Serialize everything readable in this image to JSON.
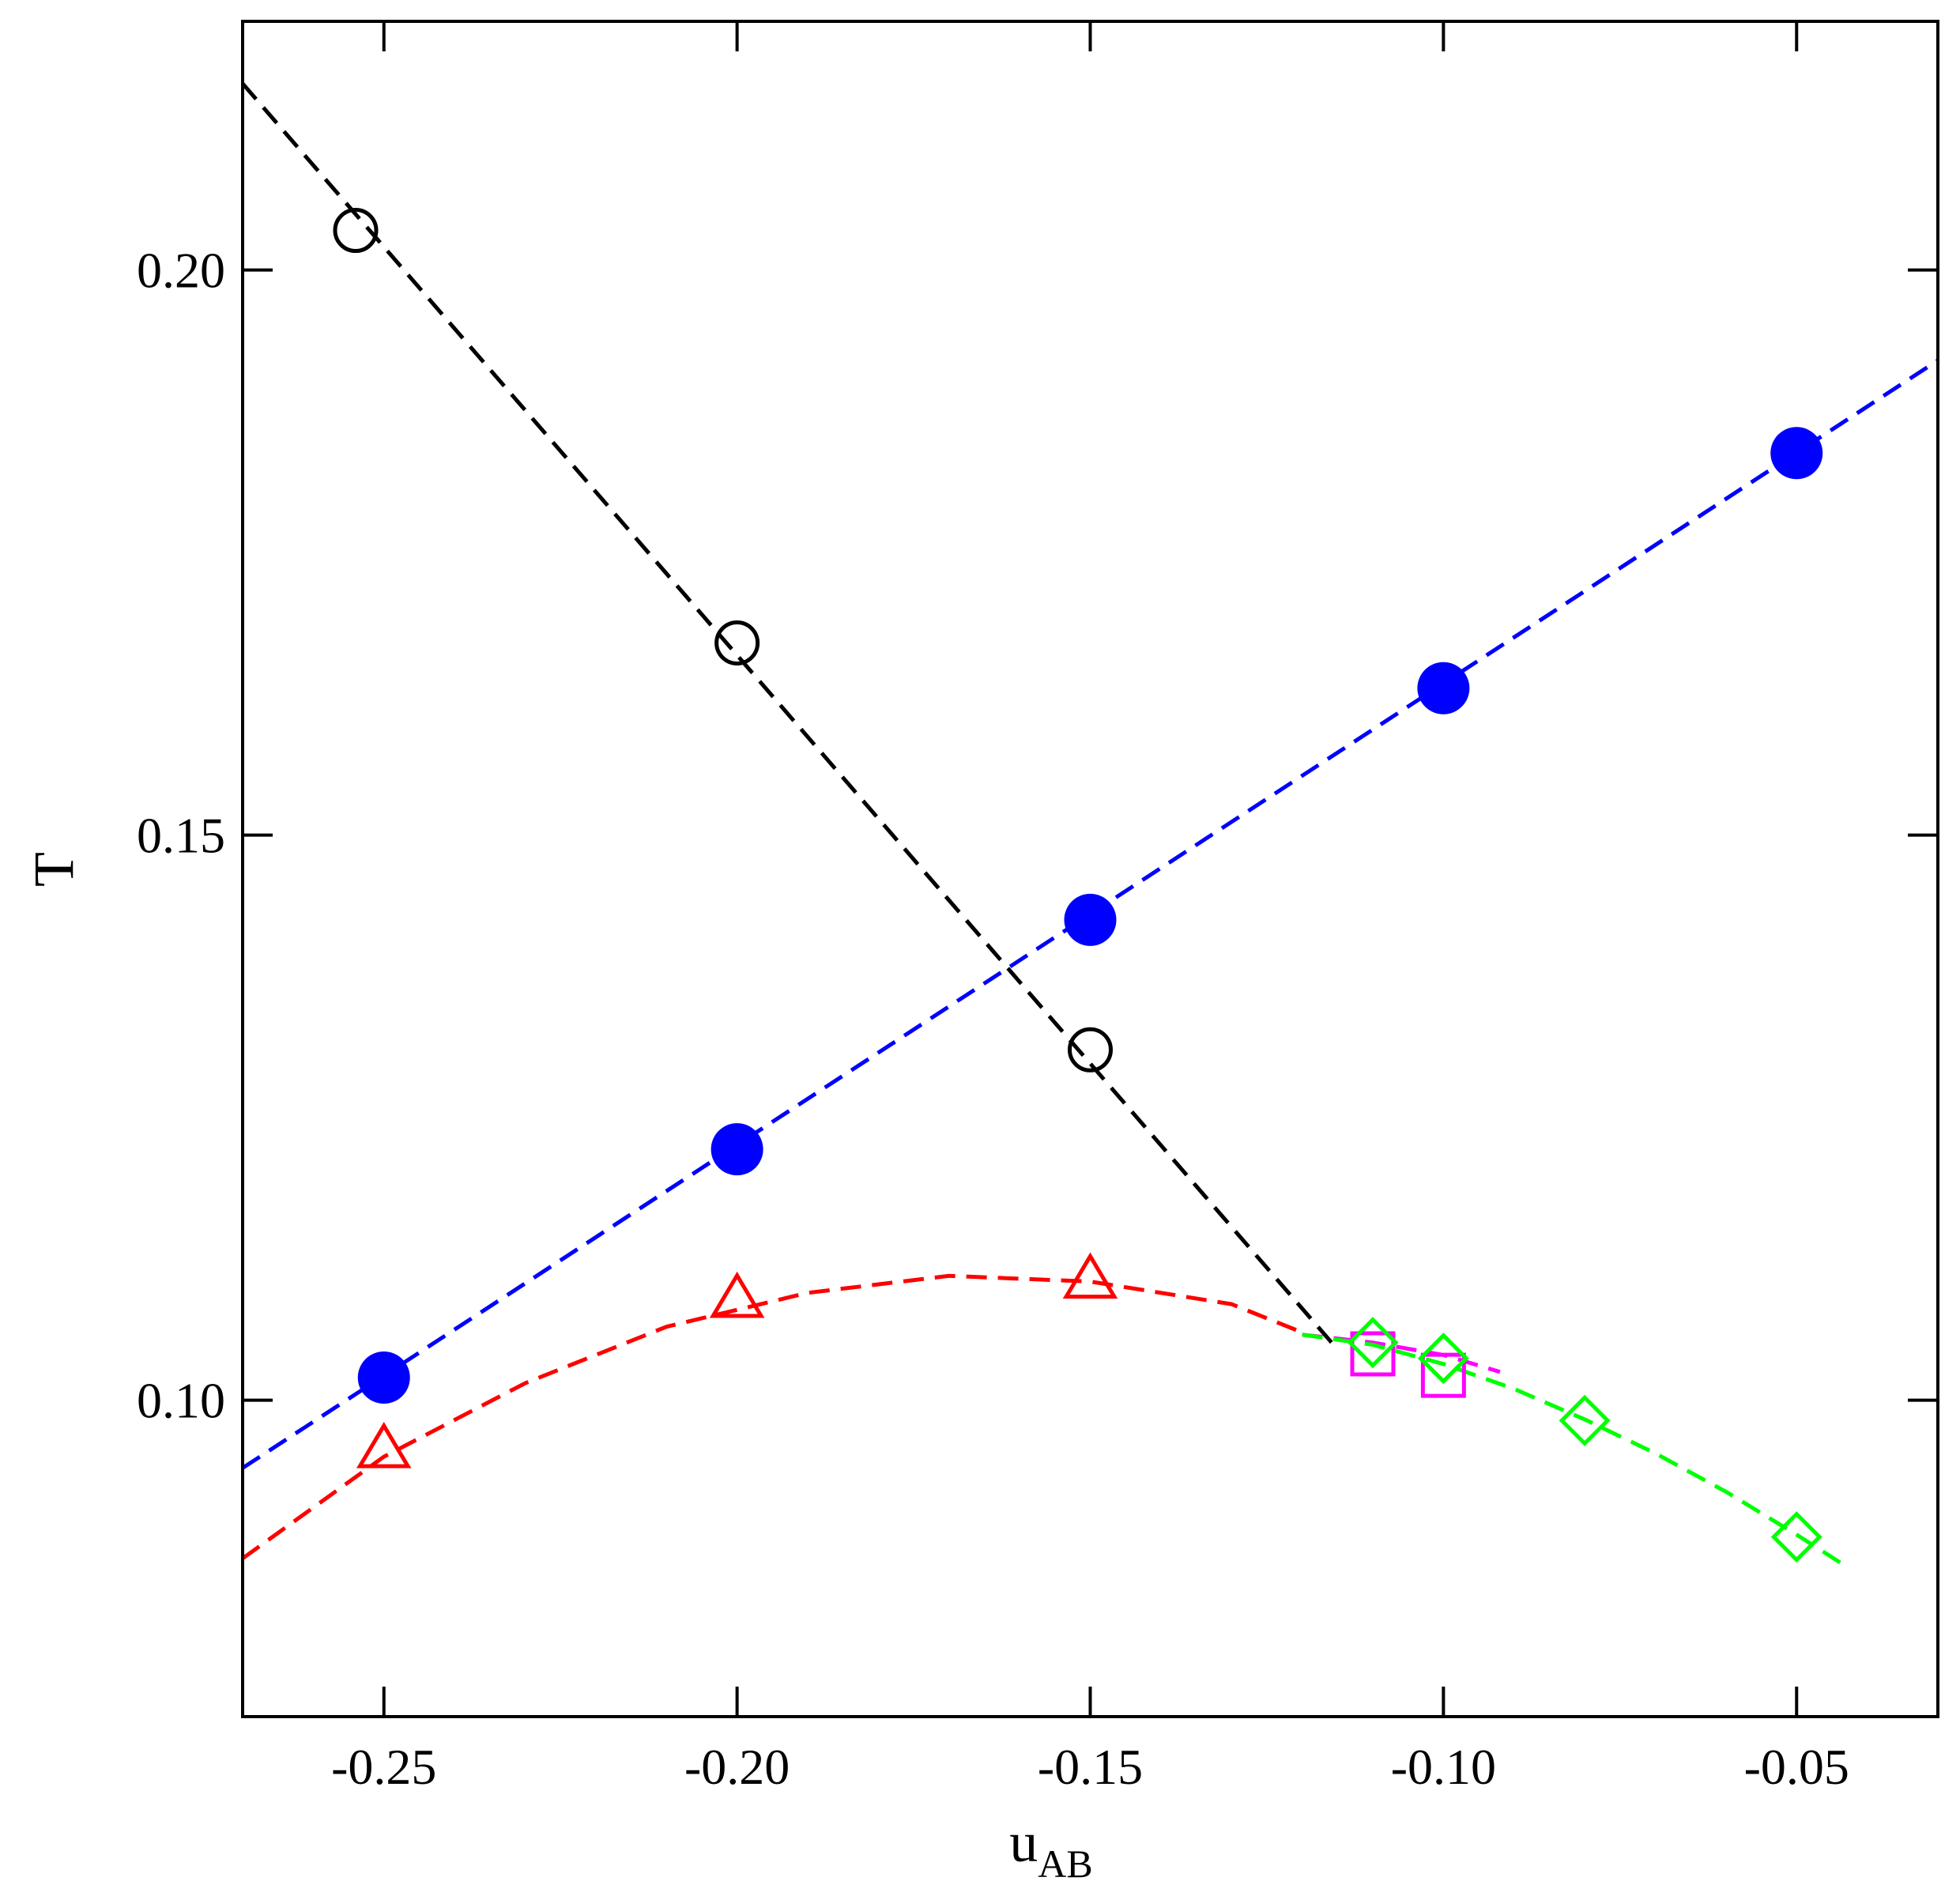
{
  "chart_data": {
    "type": "scatter",
    "xlabel": "u",
    "xlabel_subscript": "AB",
    "ylabel": "T",
    "xlim": [
      -0.27,
      -0.03
    ],
    "ylim": [
      0.072,
      0.222
    ],
    "xticks": [
      -0.25,
      -0.2,
      -0.15,
      -0.1,
      -0.05
    ],
    "xtick_labels": [
      "-0.25",
      "-0.20",
      "-0.15",
      "-0.10",
      "-0.05"
    ],
    "yticks": [
      0.1,
      0.15,
      0.2
    ],
    "ytick_labels": [
      "0.10",
      "0.15",
      "0.20"
    ],
    "grid": false,
    "series": [
      {
        "marker": "open-circle",
        "color": "#000000",
        "points": [
          [
            -0.254,
            0.2035
          ],
          [
            -0.2,
            0.167
          ],
          [
            -0.15,
            0.131
          ]
        ],
        "fit_line": [
          [
            -0.27,
            0.2165
          ],
          [
            -0.115,
            0.1045
          ]
        ]
      },
      {
        "marker": "filled-circle",
        "color": "#0000ff",
        "points": [
          [
            -0.25,
            0.102
          ],
          [
            -0.2,
            0.1222
          ],
          [
            -0.15,
            0.1425
          ],
          [
            -0.1,
            0.163
          ],
          [
            -0.05,
            0.1838
          ]
        ],
        "fit_line": [
          [
            -0.27,
            0.094
          ],
          [
            -0.03,
            0.192
          ]
        ]
      },
      {
        "marker": "open-triangle",
        "color": "#ff0000",
        "points": [
          [
            -0.25,
            0.0955
          ],
          [
            -0.2,
            0.1088
          ],
          [
            -0.15,
            0.1105
          ]
        ],
        "fit_line": [
          [
            -0.27,
            0.086
          ],
          [
            -0.25,
            0.095
          ],
          [
            -0.23,
            0.1015
          ],
          [
            -0.21,
            0.1065
          ],
          [
            -0.19,
            0.1095
          ],
          [
            -0.17,
            0.111
          ],
          [
            -0.15,
            0.1105
          ],
          [
            -0.13,
            0.1085
          ],
          [
            -0.12,
            0.106
          ]
        ]
      },
      {
        "marker": "open-square",
        "color": "#ff00ff",
        "points": [
          [
            -0.11,
            0.1041
          ],
          [
            -0.1,
            0.1022
          ]
        ],
        "fit_line": [
          [
            -0.12,
            0.1058
          ],
          [
            -0.11,
            0.1051
          ],
          [
            -0.1,
            0.104
          ],
          [
            -0.092,
            0.1025
          ]
        ]
      },
      {
        "marker": "open-diamond",
        "color": "#00ff00",
        "points": [
          [
            -0.11,
            0.1051
          ],
          [
            -0.1,
            0.1037
          ],
          [
            -0.08,
            0.0982
          ],
          [
            -0.05,
            0.0879
          ]
        ],
        "fit_line": [
          [
            -0.12,
            0.1058
          ],
          [
            -0.11,
            0.1049
          ],
          [
            -0.1,
            0.1032
          ],
          [
            -0.09,
            0.101
          ],
          [
            -0.08,
            0.0983
          ],
          [
            -0.07,
            0.0953
          ],
          [
            -0.06,
            0.0919
          ],
          [
            -0.05,
            0.0881
          ],
          [
            -0.043,
            0.0853
          ]
        ]
      }
    ]
  }
}
